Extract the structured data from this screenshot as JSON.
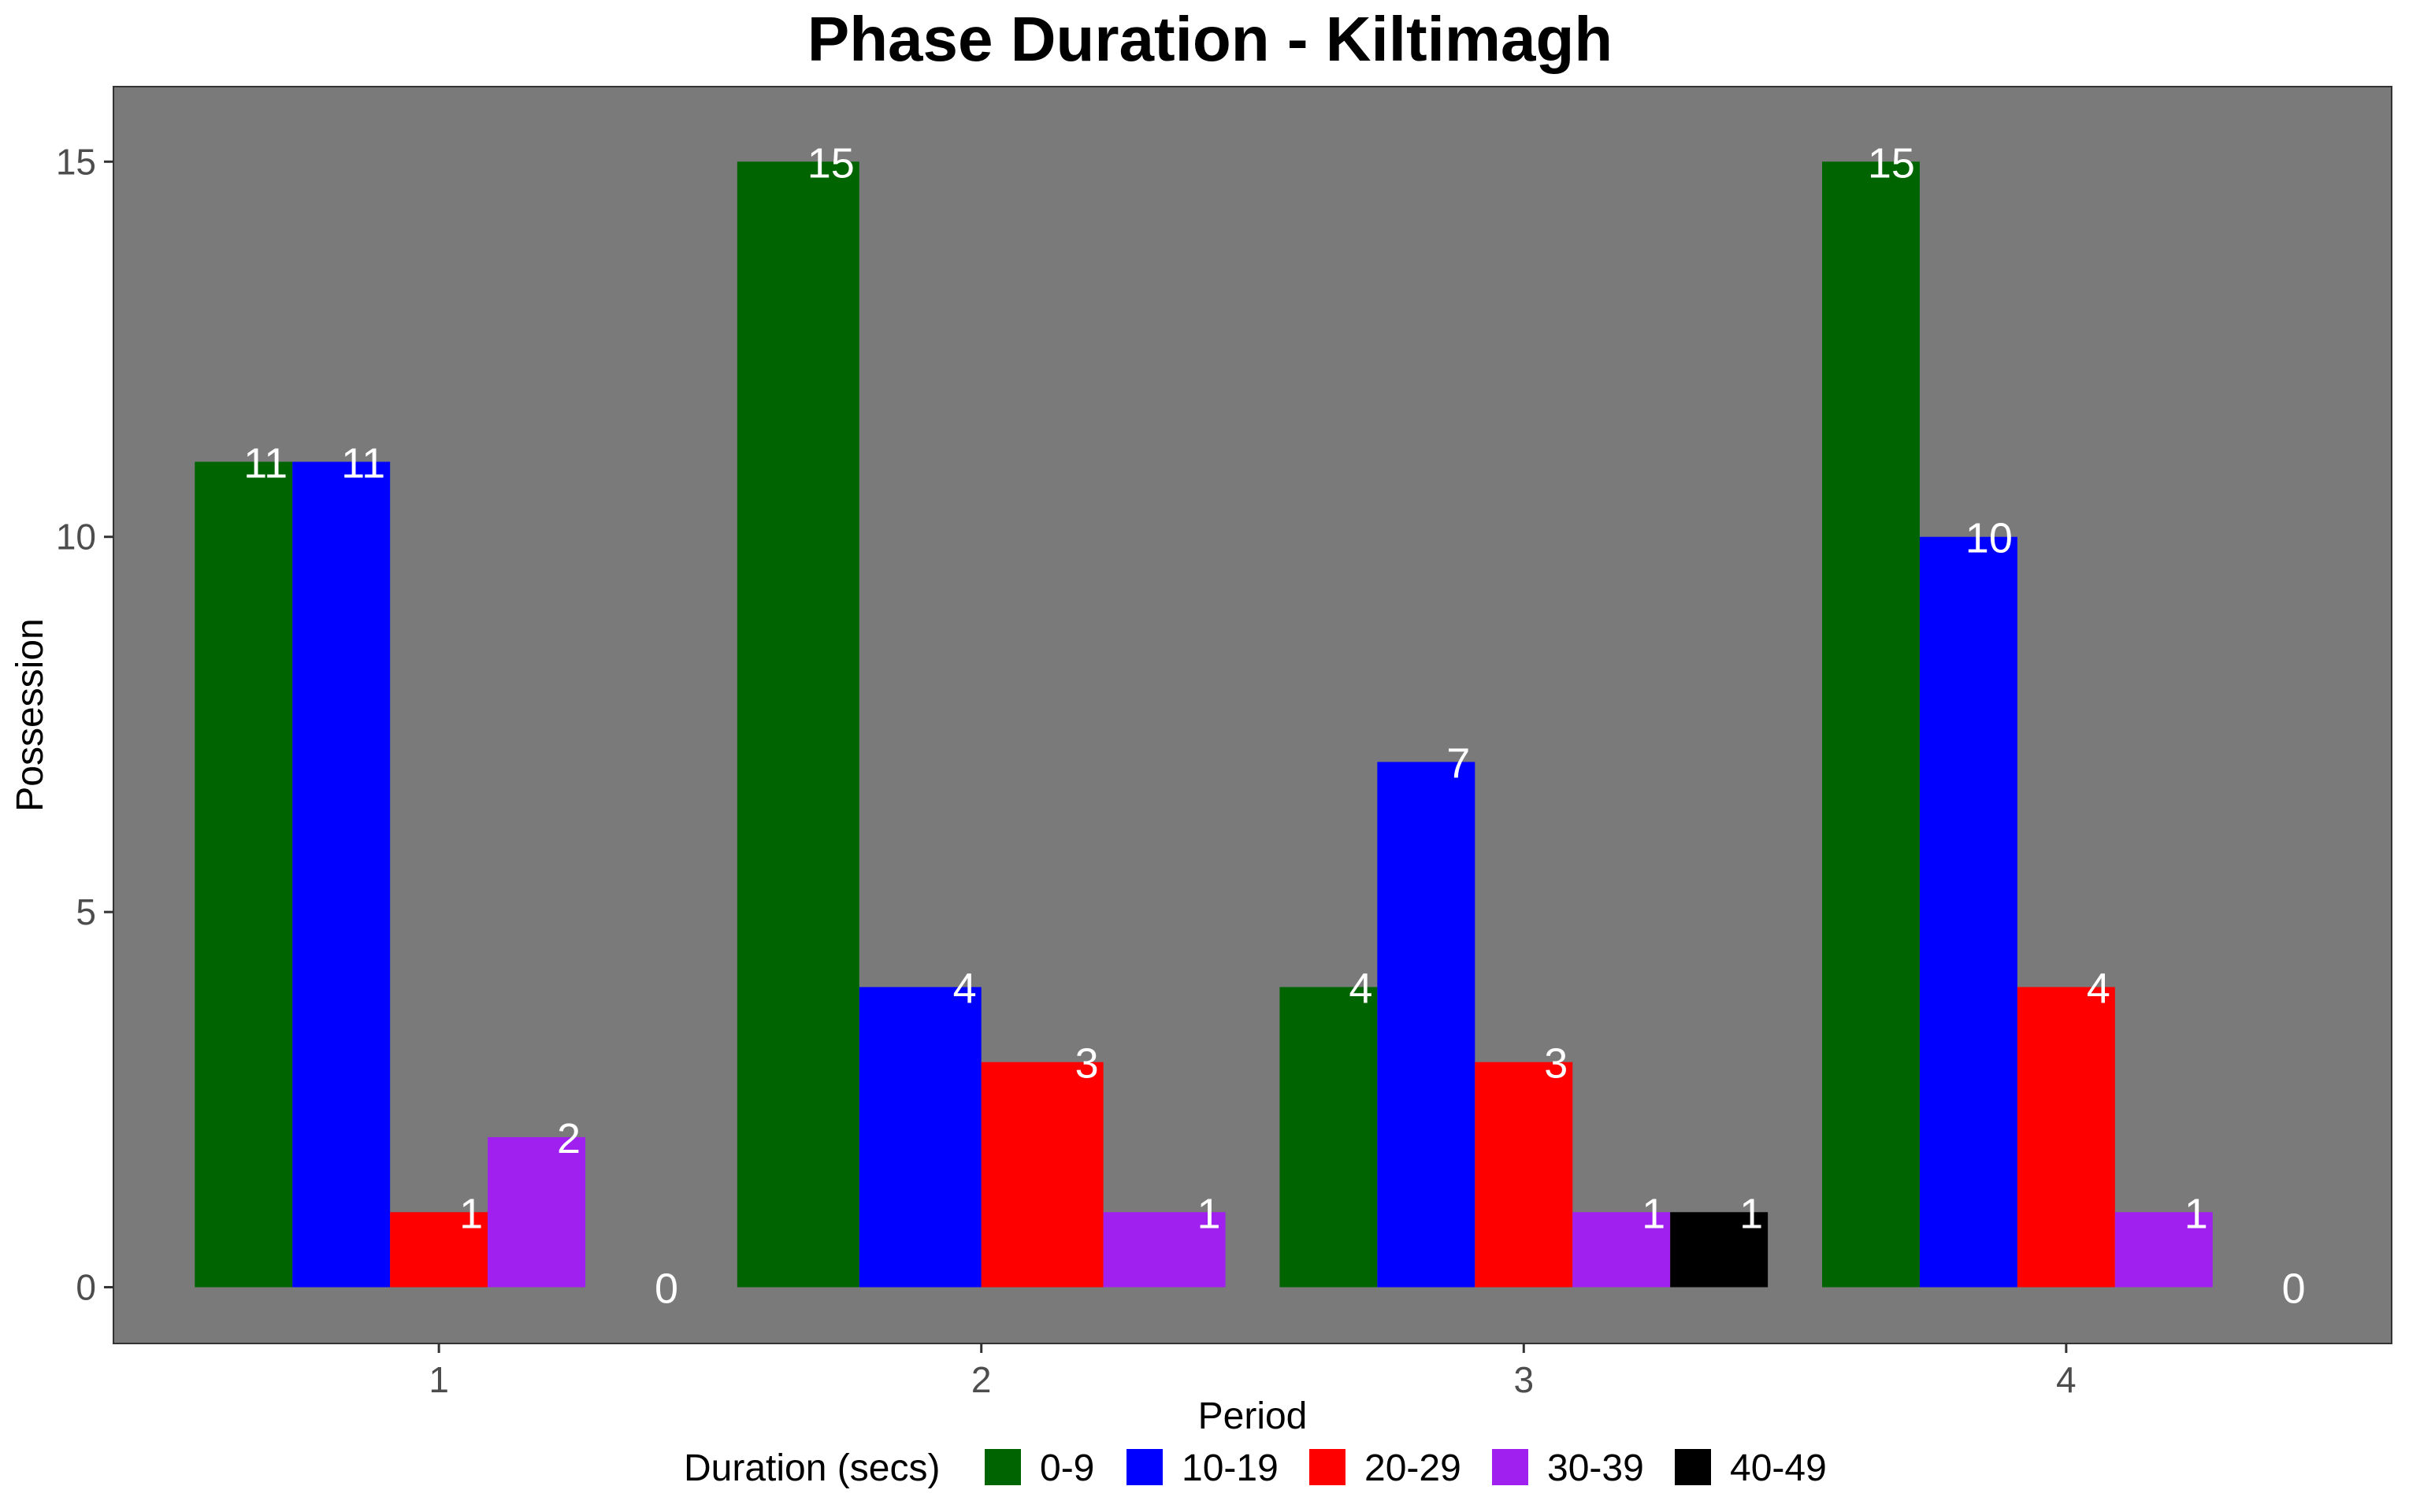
{
  "chart_data": {
    "type": "bar",
    "title": "Phase Duration - Kiltimagh",
    "xlabel": "Period",
    "ylabel": "Possession",
    "categories": [
      "1",
      "2",
      "3",
      "4"
    ],
    "ylim": [
      -0.75,
      16
    ],
    "yticks": [
      0,
      5,
      10,
      15
    ],
    "grid": false,
    "legend_title": "Duration (secs)",
    "legend_position": "bottom",
    "panel_color": "#7a7a7a",
    "series": [
      {
        "name": "0-9",
        "color": "#006400",
        "values": [
          11,
          15,
          4,
          15
        ]
      },
      {
        "name": "10-19",
        "color": "#0000ff",
        "values": [
          11,
          4,
          7,
          10
        ]
      },
      {
        "name": "20-29",
        "color": "#ff0000",
        "values": [
          1,
          3,
          3,
          4
        ]
      },
      {
        "name": "30-39",
        "color": "#a020f0",
        "values": [
          2,
          1,
          1,
          1
        ]
      },
      {
        "name": "40-49",
        "color": "#000000",
        "values": [
          0,
          null,
          1,
          0
        ]
      }
    ]
  }
}
